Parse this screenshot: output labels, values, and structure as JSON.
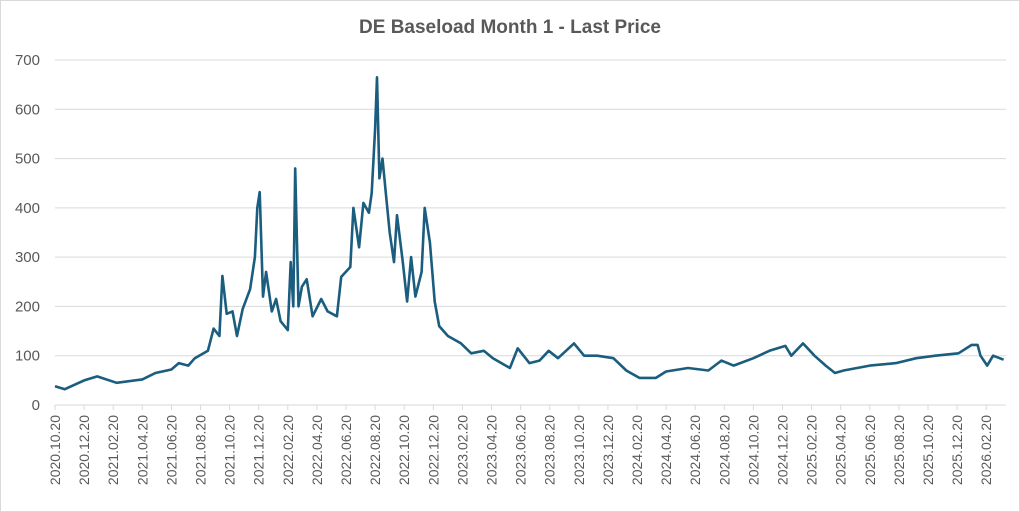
{
  "chart_data": {
    "type": "line",
    "title": "DE Baseload Month 1 - Last Price",
    "xlabel": "",
    "ylabel": "",
    "ylim": [
      0,
      700
    ],
    "yticks": [
      0,
      100,
      200,
      300,
      400,
      500,
      600,
      700
    ],
    "grid": true,
    "legend": "none",
    "xticks": [
      "2020.10.20",
      "2020.12.20",
      "2021.02.20",
      "2021.04.20",
      "2021.06.20",
      "2021.08.20",
      "2021.10.20",
      "2021.12.20",
      "2022.02.20",
      "2022.04.20",
      "2022.06.20",
      "2022.08.20",
      "2022.10.20",
      "2022.12.20",
      "2023.02.20",
      "2023.04.20",
      "2023.06.20",
      "2023.08.20",
      "2023.10.20",
      "2023.12.20",
      "2024.02.20",
      "2024.04.20",
      "2024.06.20",
      "2024.08.20",
      "2024.10.20",
      "2024.12.20",
      "2025.02.20",
      "2025.04.20",
      "2025.06.20",
      "2025.08.20",
      "2025.10.20",
      "2025.12.20",
      "2026.02.20"
    ],
    "series": [
      {
        "name": "DE Baseload Month 1 - Last Price",
        "color": "#1a5d7e",
        "x": [
          "2020-10-20",
          "2020-11-10",
          "2020-12-20",
          "2021-01-17",
          "2021-02-27",
          "2021-04-20",
          "2021-05-17",
          "2021-06-20",
          "2021-07-05",
          "2021-07-25",
          "2021-08-08",
          "2021-09-05",
          "2021-09-17",
          "2021-09-29",
          "2021-10-05",
          "2021-10-14",
          "2021-10-26",
          "2021-11-05",
          "2021-11-17",
          "2021-12-02",
          "2021-12-12",
          "2021-12-17",
          "2021-12-22",
          "2021-12-29",
          "2022-01-05",
          "2022-01-17",
          "2022-01-26",
          "2022-02-05",
          "2022-02-20",
          "2022-02-26",
          "2022-03-01",
          "2022-03-05",
          "2022-03-12",
          "2022-03-19",
          "2022-03-29",
          "2022-04-11",
          "2022-04-29",
          "2022-05-12",
          "2022-06-01",
          "2022-06-10",
          "2022-06-29",
          "2022-07-05",
          "2022-07-17",
          "2022-07-26",
          "2022-08-07",
          "2022-08-13",
          "2022-08-20",
          "2022-08-24",
          "2022-08-29",
          "2022-09-05",
          "2022-09-13",
          "2022-09-20",
          "2022-09-29",
          "2022-10-05",
          "2022-10-17",
          "2022-10-26",
          "2022-11-04",
          "2022-11-13",
          "2022-11-26",
          "2022-12-02",
          "2022-12-13",
          "2022-12-23",
          "2023-01-02",
          "2023-01-20",
          "2023-02-17",
          "2023-03-08",
          "2023-04-04",
          "2023-04-23",
          "2023-05-28",
          "2023-06-14",
          "2023-07-08",
          "2023-07-29",
          "2023-08-18",
          "2023-09-07",
          "2023-10-10",
          "2023-10-31",
          "2023-11-28",
          "2024-01-01",
          "2024-01-28",
          "2024-02-25",
          "2024-03-29",
          "2024-04-20",
          "2024-06-05",
          "2024-07-17",
          "2024-08-14",
          "2024-09-09",
          "2024-10-20",
          "2024-11-23",
          "2024-12-26",
          "2025-01-08",
          "2025-02-02",
          "2025-02-26",
          "2025-03-19",
          "2025-04-08",
          "2025-04-26",
          "2025-06-20",
          "2025-08-14",
          "2025-09-26",
          "2025-11-05",
          "2025-12-23",
          "2026-01-20",
          "2026-02-02",
          "2026-02-08",
          "2026-02-22",
          "2026-03-04",
          "2026-03-26"
        ],
        "values": [
          38,
          32,
          50,
          58,
          45,
          52,
          65,
          72,
          85,
          80,
          95,
          110,
          155,
          140,
          262,
          185,
          190,
          140,
          195,
          235,
          300,
          400,
          432,
          220,
          270,
          190,
          215,
          170,
          152,
          290,
          200,
          480,
          200,
          240,
          255,
          180,
          215,
          190,
          180,
          260,
          280,
          400,
          320,
          410,
          390,
          430,
          560,
          665,
          460,
          500,
          420,
          350,
          290,
          385,
          290,
          210,
          300,
          220,
          270,
          400,
          330,
          210,
          160,
          140,
          125,
          105,
          110,
          95,
          75,
          115,
          85,
          90,
          110,
          95,
          125,
          100,
          100,
          95,
          70,
          55,
          55,
          68,
          75,
          70,
          90,
          80,
          95,
          110,
          120,
          100,
          125,
          100,
          80,
          65,
          70,
          80,
          85,
          95,
          100,
          105,
          122,
          122,
          100,
          80,
          100,
          92
        ]
      }
    ]
  }
}
